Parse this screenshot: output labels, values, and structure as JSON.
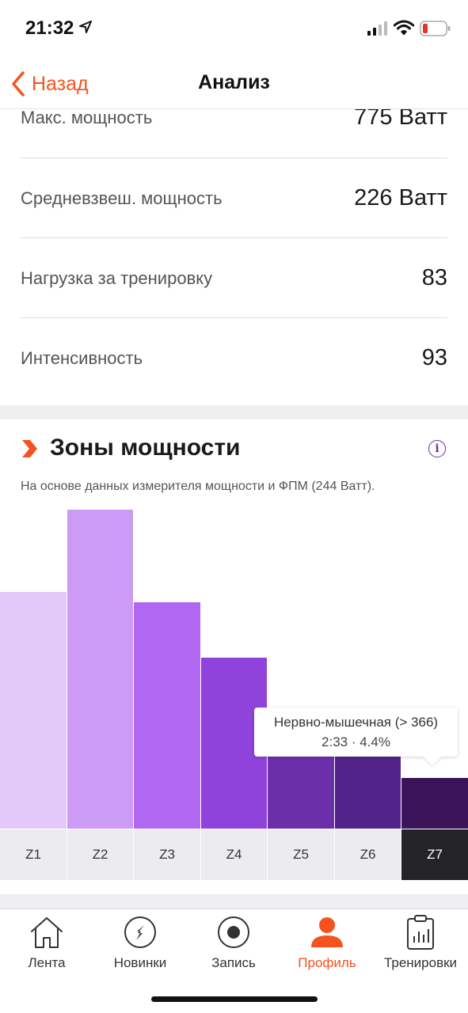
{
  "status_bar": {
    "time": "21:32"
  },
  "nav": {
    "back_label": "Назад",
    "title": "Анализ"
  },
  "stats": [
    {
      "label": "Макс. мощность",
      "value": "775 Ватт"
    },
    {
      "label": "Средневзвеш. мощность",
      "value": "226 Ватт"
    },
    {
      "label": "Нагрузка за тренировку",
      "value": "83"
    },
    {
      "label": "Интенсивность",
      "value": "93"
    }
  ],
  "zones": {
    "title": "Зоны мощности",
    "subtitle": "На основе данных измерителя мощности и ФПМ (244 Ватт).",
    "selected_zone": "Z7",
    "tooltip": {
      "title": "Нервно-мышечная (> 366)",
      "detail": "2:33 · 4.4%"
    }
  },
  "chart_data": {
    "type": "bar",
    "categories": [
      "Z1",
      "Z2",
      "Z3",
      "Z4",
      "Z5",
      "Z6",
      "Z7"
    ],
    "values": [
      29.4,
      39.6,
      28.1,
      21.2,
      9.6,
      9.6,
      6.3
    ],
    "colors": [
      "#e2c9f8",
      "#cc9bf6",
      "#b067f2",
      "#8f43da",
      "#6b2fa9",
      "#52238a",
      "#3a1358"
    ],
    "ylim": [
      0,
      40
    ],
    "unit": "%",
    "grid": false,
    "legend": "none"
  },
  "tabbar": {
    "items": [
      {
        "label": "Лента",
        "icon": "home-icon"
      },
      {
        "label": "Новинки",
        "icon": "compass-icon"
      },
      {
        "label": "Запись",
        "icon": "record-icon"
      },
      {
        "label": "Профиль",
        "icon": "profile-icon"
      },
      {
        "label": "Тренировки",
        "icon": "training-log-icon"
      }
    ],
    "active": "Профиль"
  }
}
